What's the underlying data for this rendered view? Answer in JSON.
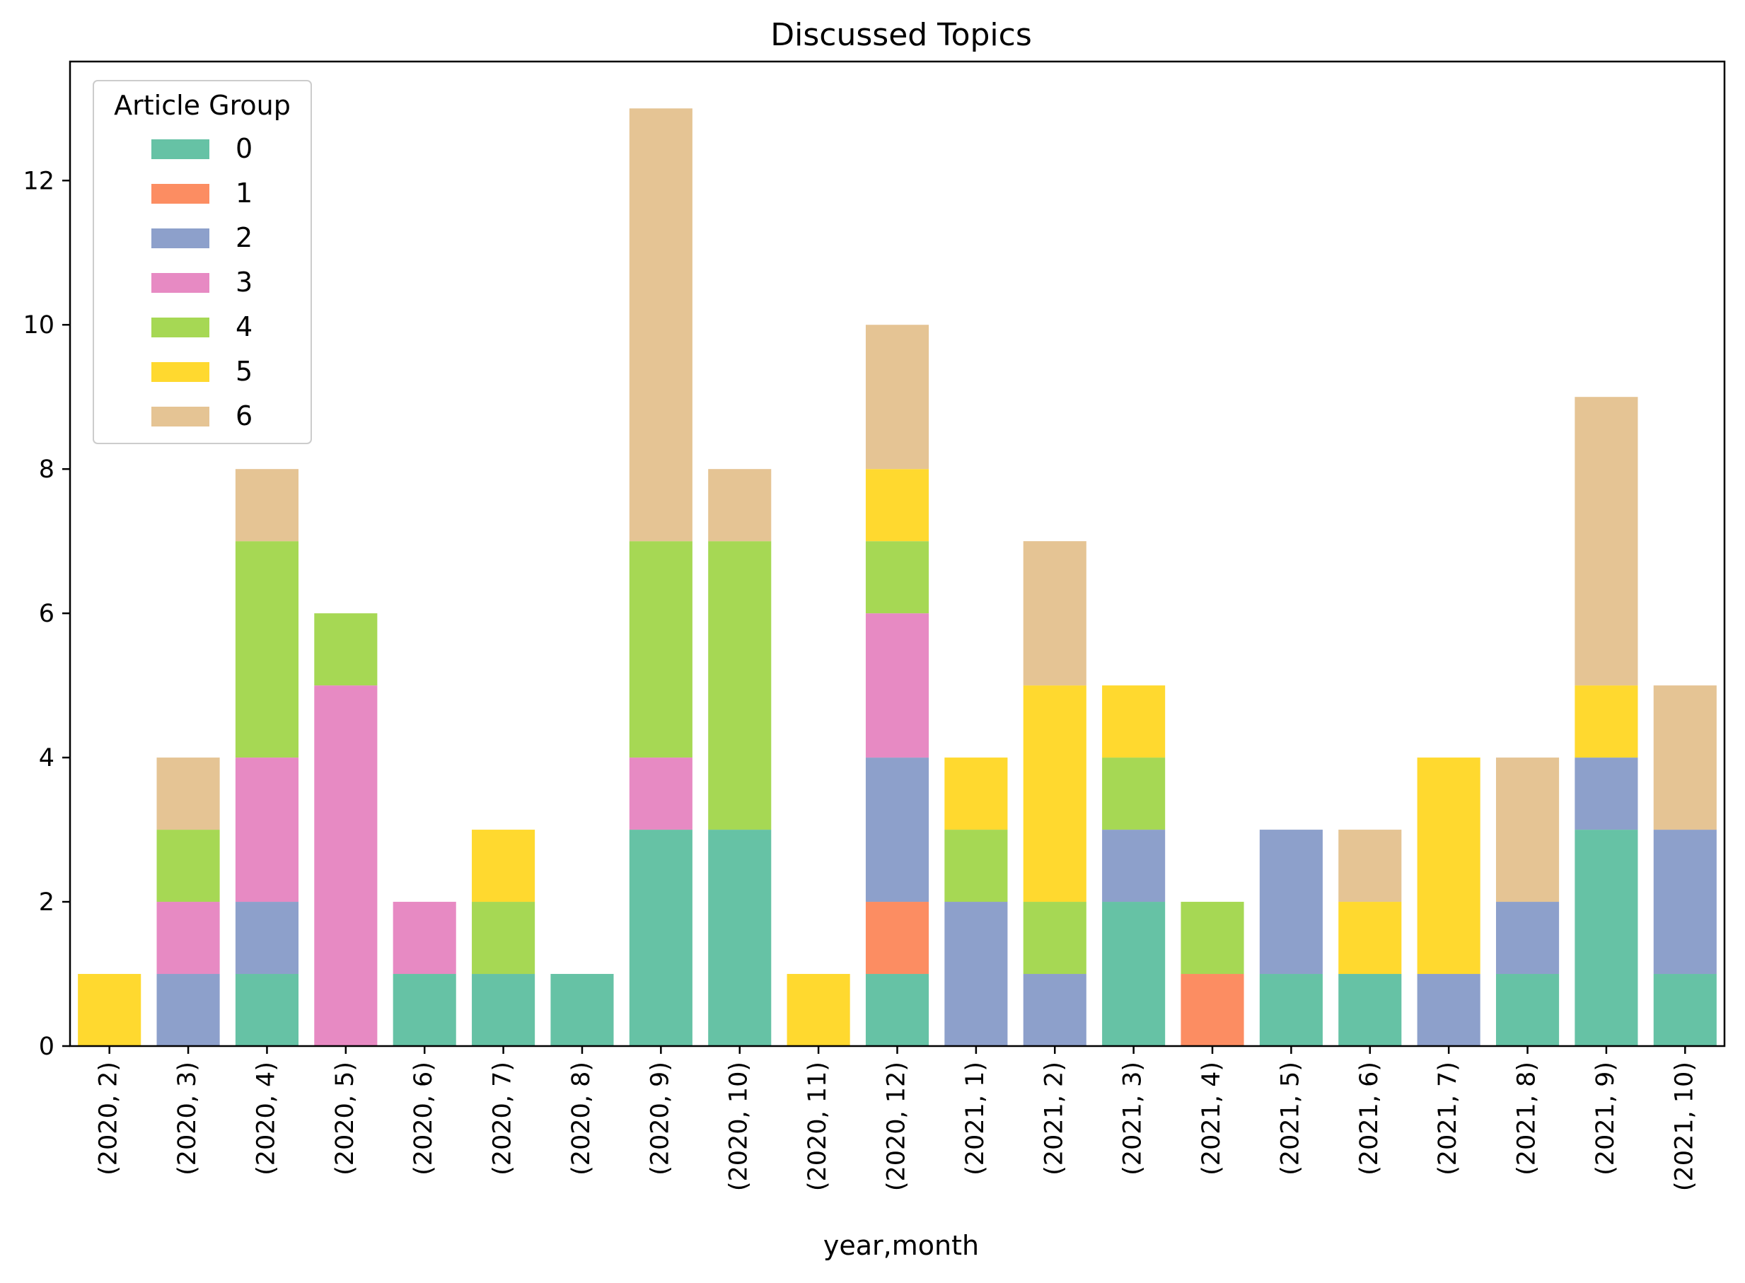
{
  "chart_data": {
    "type": "bar",
    "stacked": true,
    "title": "Discussed Topics",
    "xlabel": "year,month",
    "ylabel": "",
    "ylim": [
      0,
      13.65
    ],
    "yticks": [
      0,
      2,
      4,
      6,
      8,
      10,
      12
    ],
    "grid": false,
    "legend": {
      "title": "Article Group",
      "placement": "top-left"
    },
    "categories": [
      "(2020, 2)",
      "(2020, 3)",
      "(2020, 4)",
      "(2020, 5)",
      "(2020, 6)",
      "(2020, 7)",
      "(2020, 8)",
      "(2020, 9)",
      "(2020, 10)",
      "(2020, 11)",
      "(2020, 12)",
      "(2021, 1)",
      "(2021, 2)",
      "(2021, 3)",
      "(2021, 4)",
      "(2021, 5)",
      "(2021, 6)",
      "(2021, 7)",
      "(2021, 8)",
      "(2021, 9)",
      "(2021, 10)"
    ],
    "series": [
      {
        "name": "0",
        "color": "#66c2a5",
        "values": [
          0,
          0,
          1,
          0,
          1,
          1,
          1,
          3,
          3,
          0,
          1,
          0,
          0,
          2,
          0,
          1,
          1,
          0,
          1,
          3,
          1
        ]
      },
      {
        "name": "1",
        "color": "#fc8d62",
        "values": [
          0,
          0,
          0,
          0,
          0,
          0,
          0,
          0,
          0,
          0,
          1,
          0,
          0,
          0,
          1,
          0,
          0,
          0,
          0,
          0,
          0
        ]
      },
      {
        "name": "2",
        "color": "#8da0cb",
        "values": [
          0,
          1,
          1,
          0,
          0,
          0,
          0,
          0,
          0,
          0,
          2,
          2,
          1,
          1,
          0,
          2,
          0,
          1,
          1,
          1,
          2
        ]
      },
      {
        "name": "3",
        "color": "#e78ac3",
        "values": [
          0,
          1,
          2,
          5,
          1,
          0,
          0,
          1,
          0,
          0,
          2,
          0,
          0,
          0,
          0,
          0,
          0,
          0,
          0,
          0,
          0
        ]
      },
      {
        "name": "4",
        "color": "#a6d854",
        "values": [
          0,
          1,
          3,
          1,
          0,
          1,
          0,
          3,
          4,
          0,
          1,
          1,
          1,
          1,
          1,
          0,
          0,
          0,
          0,
          0,
          0
        ]
      },
      {
        "name": "5",
        "color": "#ffd92f",
        "values": [
          1,
          0,
          0,
          0,
          0,
          1,
          0,
          0,
          0,
          1,
          1,
          1,
          3,
          1,
          0,
          0,
          1,
          3,
          0,
          1,
          0
        ]
      },
      {
        "name": "6",
        "color": "#e5c494",
        "values": [
          0,
          1,
          1,
          0,
          0,
          0,
          0,
          6,
          1,
          0,
          2,
          0,
          2,
          0,
          0,
          0,
          1,
          0,
          2,
          4,
          2
        ]
      }
    ]
  }
}
